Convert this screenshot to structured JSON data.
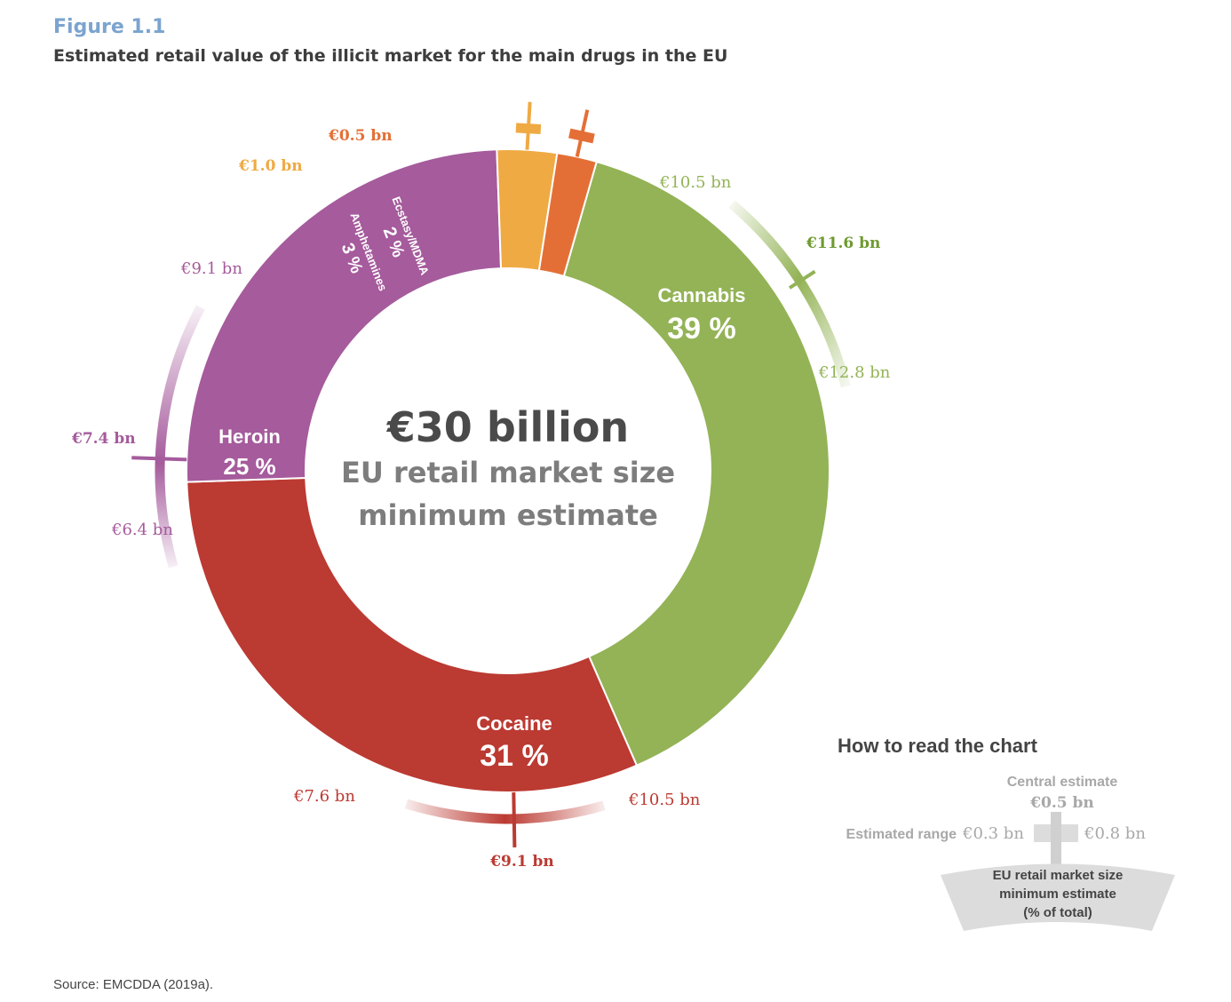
{
  "figure": {
    "label": "Figure 1.1",
    "title": "Estimated retail value of the illicit market for the main drugs in the EU",
    "source": "Source: EMCDDA (2019a)."
  },
  "center": {
    "line1": "€30 billion",
    "line2": "EU retail market size",
    "line3": "minimum estimate"
  },
  "colors": {
    "cannabis": "#93b356",
    "cocaine": "#bb3a32",
    "heroin": "#a55b9c",
    "amphetamines": "#efaa44",
    "ecstasy": "#e46f36",
    "center_text": "#4a4a4a",
    "center_sub": "#7d7d7d",
    "legend_gray": "#a8a8a8"
  },
  "chart_data": {
    "type": "donut",
    "total_label": "€30 billion",
    "segments": [
      {
        "name": "Cannabis",
        "percent": 39,
        "percent_label": "39 %",
        "color": "#93b356",
        "central": "€11.6 bn",
        "low": "€10.5 bn",
        "high": "€12.8 bn"
      },
      {
        "name": "Cocaine",
        "percent": 31,
        "percent_label": "31 %",
        "color": "#bb3a32",
        "central": "€9.1 bn",
        "low": "€7.6 bn",
        "high": "€10.5 bn"
      },
      {
        "name": "Heroin",
        "percent": 25,
        "percent_label": "25 %",
        "color": "#a55b9c",
        "central": "€7.4 bn",
        "low": "€6.4 bn",
        "high": "€9.1 bn"
      },
      {
        "name": "Amphetamines",
        "percent": 3,
        "percent_label": "3 %",
        "color": "#efaa44",
        "central": "€1.0 bn"
      },
      {
        "name": "Ecstasy/MDMA",
        "percent": 2,
        "percent_label": "2 %",
        "color": "#e46f36",
        "central": "€0.5 bn"
      }
    ]
  },
  "legend": {
    "title": "How to read the chart",
    "central_label": "Central estimate",
    "central_value": "€0.5 bn",
    "range_label": "Estimated range",
    "range_low": "€0.3 bn",
    "range_high": "€0.8 bn",
    "box_line1": "EU retail market size",
    "box_line2": "minimum estimate",
    "box_line3": "(% of total)"
  }
}
